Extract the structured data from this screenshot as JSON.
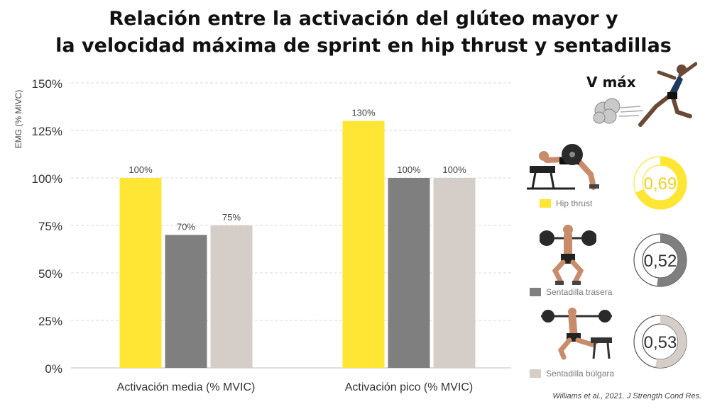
{
  "title_line1": "Relación entre la activación del glúteo mayor y",
  "title_line2": "la velocidad máxima de sprint en hip thrust y sentadillas",
  "vmax_label": "V máx",
  "source": "Williams et al., 2021. J Strength Cond Res.",
  "colors": {
    "hip_thrust": "#FFE635",
    "sentadilla_trasera": "#7F7F7F",
    "sentadilla_bulgara": "#D5CDC8",
    "grid": "#D9D9D9",
    "ring_empty": "#FFFFFF",
    "ring_border": "#555555"
  },
  "chart_data": {
    "type": "bar",
    "ylabel": "EMG (% MIVC)",
    "ylim": [
      0,
      150
    ],
    "yticks": [
      0,
      25,
      50,
      75,
      100,
      125,
      150
    ],
    "ytick_labels": [
      "0%",
      "25%",
      "50%",
      "75%",
      "100%",
      "125%",
      "150%"
    ],
    "categories": [
      "Activación media (% MVIC)",
      "Activación pico (% MVIC)"
    ],
    "series": [
      {
        "name": "Hip thrust",
        "values": [
          100,
          130
        ],
        "labels": [
          "100%",
          "130%"
        ]
      },
      {
        "name": "Sentadilla trasera",
        "values": [
          70,
          100
        ],
        "labels": [
          "70%",
          "100%"
        ]
      },
      {
        "name": "Sentadilla búlgara",
        "values": [
          75,
          100
        ],
        "labels": [
          "75%",
          "100%"
        ]
      }
    ],
    "grid": true,
    "legend_position": "right"
  },
  "correlations": [
    {
      "series": "Hip thrust",
      "value": 0.69,
      "label": "0,69"
    },
    {
      "series": "Sentadilla trasera",
      "value": 0.52,
      "label": "0,52"
    },
    {
      "series": "Sentadilla búlgara",
      "value": 0.53,
      "label": "0,53"
    }
  ],
  "legend": [
    "Hip thrust",
    "Sentadilla trasera",
    "Sentadilla búlgara"
  ],
  "icons": [
    "sprinter-icon",
    "hip-thrust-icon",
    "back-squat-icon",
    "bulgarian-squat-icon"
  ]
}
